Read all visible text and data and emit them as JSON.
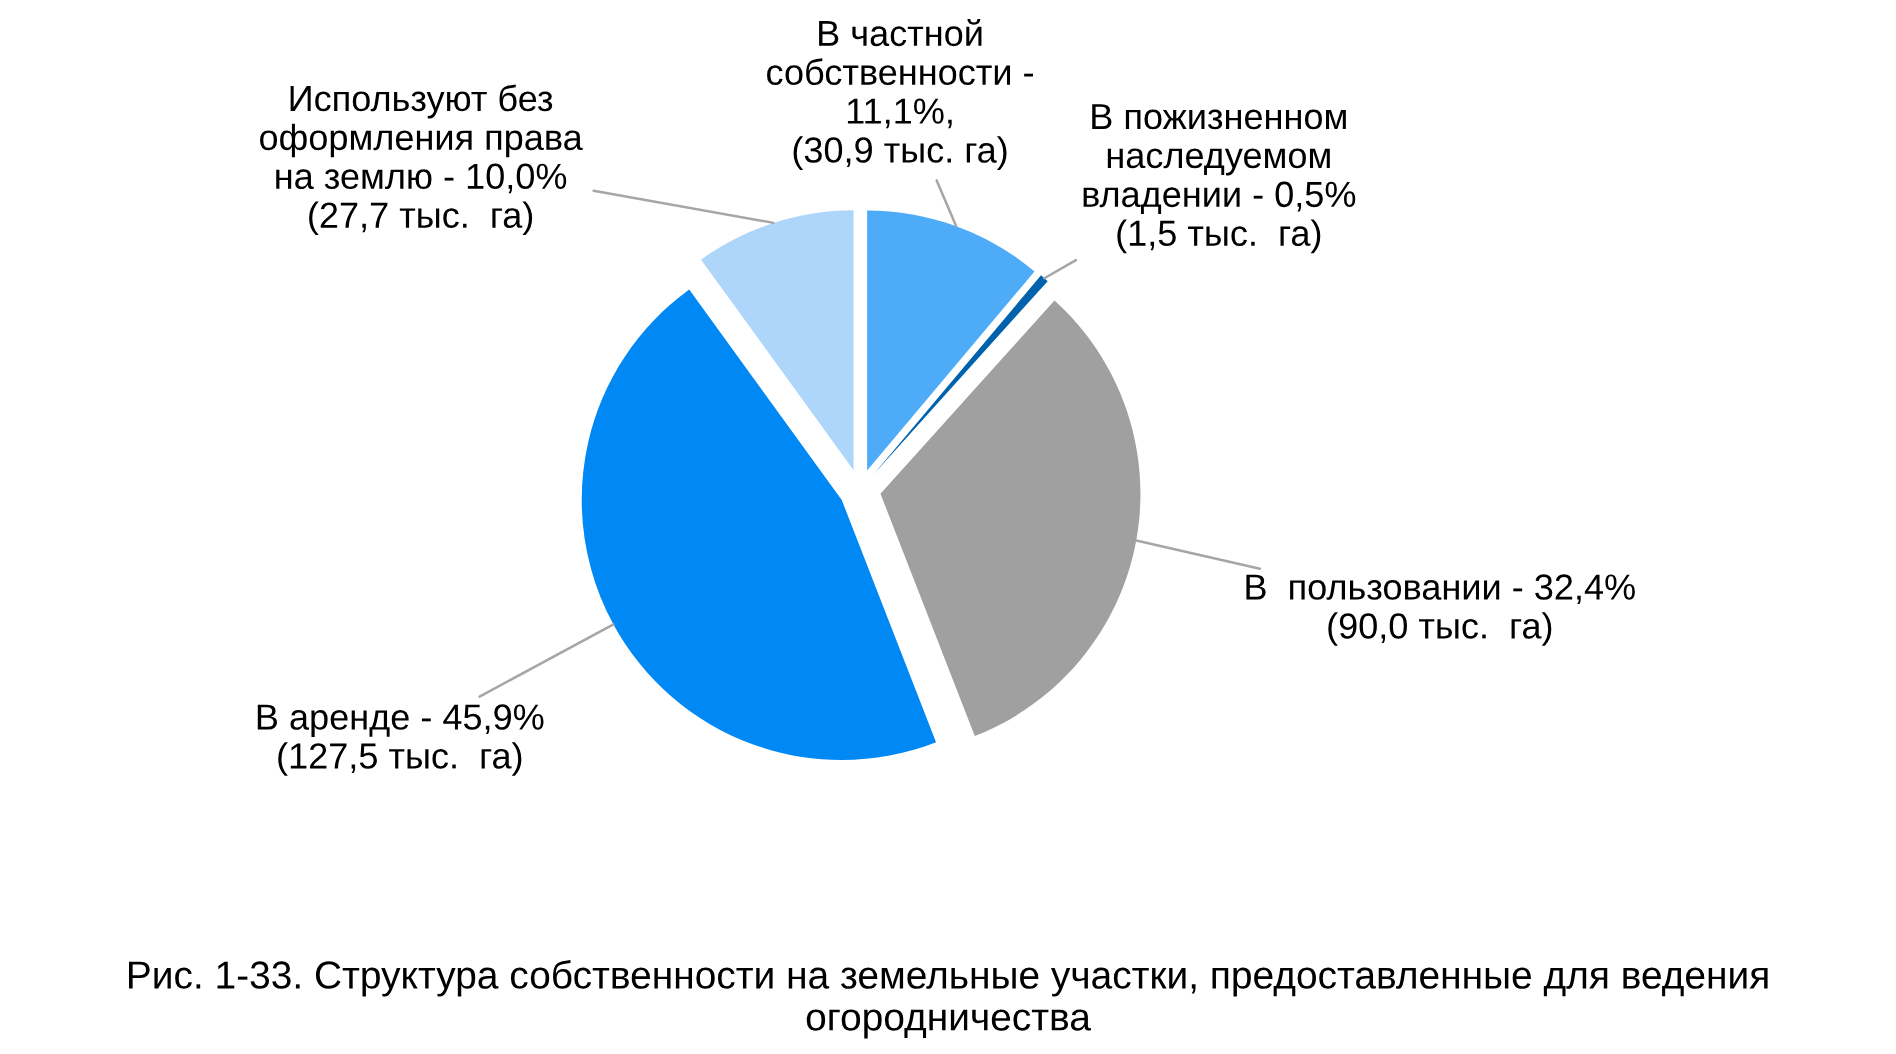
{
  "chart_data": {
    "type": "pie",
    "title": "Рис. 1-33. Структура собственности на земельные участки, предоставленные для ведения огородничества",
    "categories": [
      "В частной\nсобственности -\n11,1%,\n(30,9 тыс. га)",
      "В пожизненном\nнаследуемом\nвладении - 0,5%\n(1,5 тыс.  га)",
      "В  пользовании - 32,4%\n(90,0 тыс.  га)",
      "В аренде - 45,9%\n(127,5 тыс.  га)",
      "Используют без\nоформления права\nна землю - 10,0%\n(27,7 тыс.  га)"
    ],
    "values": [
      30.9,
      1.5,
      90.0,
      127.5,
      27.7
    ],
    "colors": [
      "#4dabf7",
      "#0062ad",
      "#a0a0a0",
      "#0088f5",
      "#aed6fa"
    ]
  }
}
